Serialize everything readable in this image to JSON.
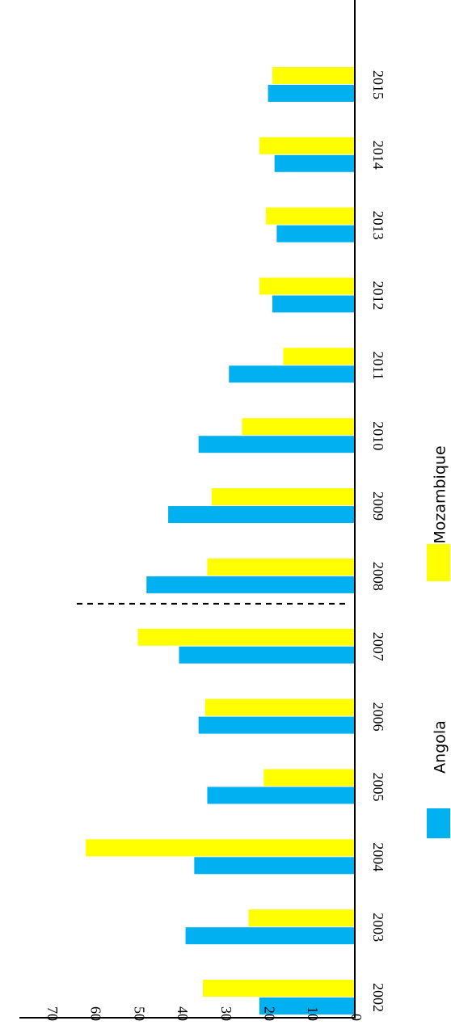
{
  "chart_data": {
    "type": "bar",
    "orientation": "horizontal",
    "categories": [
      "2002",
      "2003",
      "2004",
      "2005",
      "2006",
      "2007",
      "2008",
      "2009",
      "2010",
      "2011",
      "2012",
      "2013",
      "2014",
      "2015"
    ],
    "series": [
      {
        "name": "Angola",
        "color": "#00B0F0",
        "values": [
          22,
          39,
          37,
          34,
          36,
          40.5,
          48,
          43,
          36,
          29,
          19,
          18,
          18.5,
          20
        ]
      },
      {
        "name": "Mozambique",
        "color": "#FFFF00",
        "values": [
          35,
          24.5,
          62,
          21,
          34.5,
          50,
          34,
          33,
          26,
          16.5,
          22,
          20.5,
          22,
          19
        ]
      }
    ],
    "xlim": [
      0,
      70
    ],
    "ticks": [
      "0",
      "10",
      "20",
      "30",
      "40",
      "50",
      "60",
      "70"
    ],
    "reference_line_between": [
      "2007",
      "2008"
    ],
    "legend_position": "bottom",
    "grid": false
  }
}
